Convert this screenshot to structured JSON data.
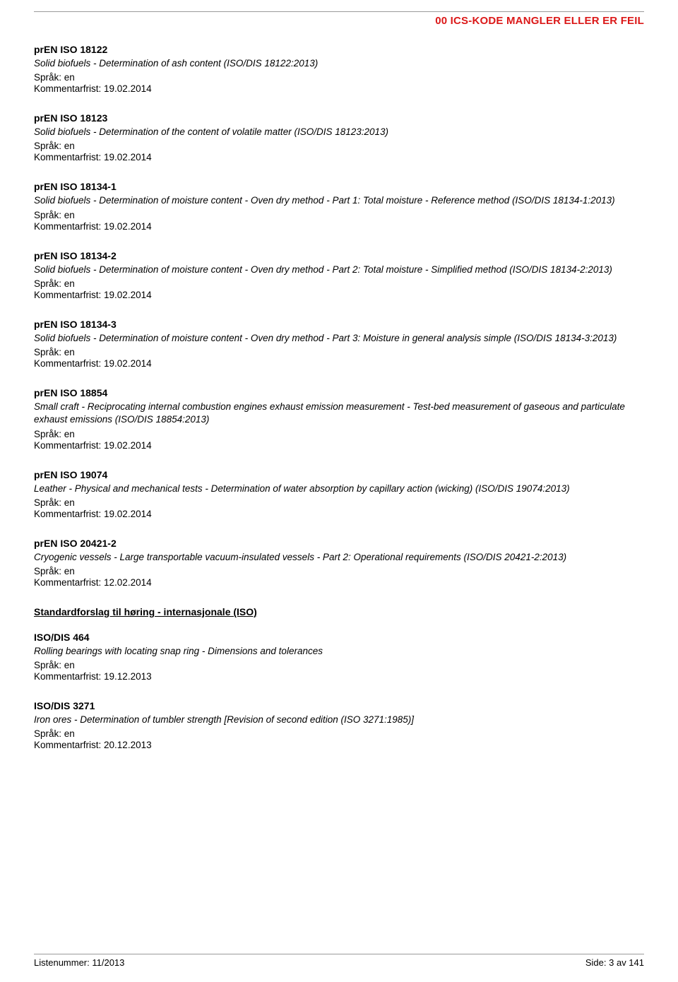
{
  "header": {
    "title": "00  ICS-KODE MANGLER ELLER ER FEIL"
  },
  "labels": {
    "lang_prefix": "Språk: ",
    "deadline_prefix": "Kommentarfrist: "
  },
  "entries": [
    {
      "code": "prEN ISO 18122",
      "desc": "Solid biofuels - Determination of ash content (ISO/DIS 18122:2013)",
      "lang": "en",
      "deadline": "19.02.2014"
    },
    {
      "code": "prEN ISO 18123",
      "desc": "Solid biofuels - Determination of the content of volatile matter (ISO/DIS 18123:2013)",
      "lang": "en",
      "deadline": "19.02.2014"
    },
    {
      "code": "prEN ISO 18134-1",
      "desc": "Solid biofuels - Determination of moisture content - Oven dry method - Part 1: Total moisture - Reference method (ISO/DIS 18134-1:2013)",
      "lang": "en",
      "deadline": "19.02.2014"
    },
    {
      "code": "prEN ISO 18134-2",
      "desc": "Solid biofuels - Determination of moisture content - Oven dry method - Part 2: Total moisture - Simplified method (ISO/DIS 18134-2:2013)",
      "lang": "en",
      "deadline": "19.02.2014"
    },
    {
      "code": "prEN ISO 18134-3",
      "desc": "Solid biofuels - Determination of moisture content - Oven dry method - Part 3: Moisture in general analysis simple (ISO/DIS 18134-3:2013)",
      "lang": "en",
      "deadline": "19.02.2014"
    },
    {
      "code": "prEN ISO 18854",
      "desc": "Small craft - Reciprocating internal combustion engines exhaust emission measurement - Test-bed measurement of gaseous and particulate exhaust emissions (ISO/DIS 18854:2013)",
      "lang": "en",
      "deadline": "19.02.2014"
    },
    {
      "code": "prEN ISO 19074",
      "desc": "Leather - Physical and mechanical tests - Determination of water absorption by capillary action (wicking) (ISO/DIS 19074:2013)",
      "lang": "en",
      "deadline": "19.02.2014"
    },
    {
      "code": "prEN ISO 20421-2",
      "desc": "Cryogenic vessels - Large transportable vacuum-insulated vessels - Part 2: Operational requirements (ISO/DIS 20421-2:2013)",
      "lang": "en",
      "deadline": "12.02.2014"
    }
  ],
  "section_heading": "Standardforslag til høring - internasjonale (ISO)",
  "iso_entries": [
    {
      "code": "ISO/DIS 464",
      "desc": "Rolling bearings with locating snap ring - Dimensions and tolerances",
      "lang": "en",
      "deadline": "19.12.2013"
    },
    {
      "code": "ISO/DIS 3271",
      "desc": "Iron ores - Determination of tumbler strength [Revision of second edition (ISO 3271:1985)]",
      "lang": "en",
      "deadline": "20.12.2013"
    }
  ],
  "footer": {
    "left": "Listenummer: 11/2013",
    "right": "Side: 3 av 141"
  }
}
